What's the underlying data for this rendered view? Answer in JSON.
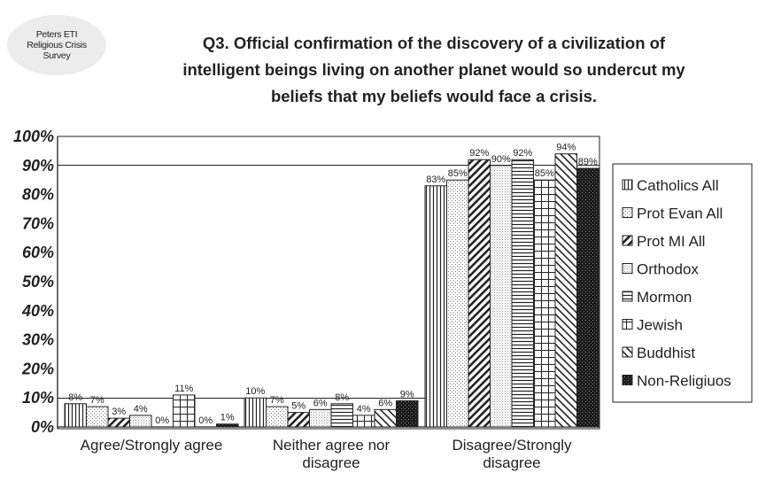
{
  "badge": {
    "lines": [
      "Peters ETI",
      "Religious Crisis",
      "Survey"
    ]
  },
  "title_lines": [
    "Q3. Official confirmation of the discovery of a civilization of",
    "intelligent beings living on another planet would so undercut my",
    "beliefs that my beliefs would face a crisis."
  ],
  "chart_data": {
    "type": "bar",
    "title": "Q3. Official confirmation of the discovery of a civilization of intelligent beings living on another planet would so undercut my beliefs that my beliefs would face a crisis.",
    "categories": [
      [
        "Agree/Strongly agree"
      ],
      [
        "Neither agree nor",
        "disagree"
      ],
      [
        "Disagree/Strongly",
        "disagree"
      ]
    ],
    "ylim": [
      0,
      100
    ],
    "yticks": [
      "0%",
      "10%",
      "20%",
      "30%",
      "40%",
      "50%",
      "60%",
      "70%",
      "80%",
      "90%",
      "100%"
    ],
    "grid": "horizontal lines at 10% and 90%",
    "legend_position": "right",
    "series": [
      {
        "name": "Catholics All",
        "pattern": "vlines",
        "values": [
          8,
          10,
          83
        ],
        "labels": [
          "8%",
          "10%",
          "83%"
        ]
      },
      {
        "name": "Prot Evan All",
        "pattern": "dots",
        "values": [
          7,
          7,
          85
        ],
        "labels": [
          "7%",
          "7%",
          "85%"
        ]
      },
      {
        "name": "Prot MI All",
        "pattern": "diag",
        "values": [
          3,
          5,
          92
        ],
        "labels": [
          "3%",
          "5%",
          "92%"
        ]
      },
      {
        "name": "Orthodox",
        "pattern": "fine",
        "values": [
          4,
          6,
          90
        ],
        "labels": [
          "4%",
          "6%",
          "90%"
        ]
      },
      {
        "name": "Mormon",
        "pattern": "hlines",
        "values": [
          0,
          8,
          92
        ],
        "labels": [
          "0%",
          "8%",
          "92%"
        ]
      },
      {
        "name": "Jewish",
        "pattern": "grid",
        "values": [
          11,
          4,
          85
        ],
        "labels": [
          "11%",
          "4%",
          "85%"
        ]
      },
      {
        "name": "Buddhist",
        "pattern": "diagwide",
        "values": [
          0,
          6,
          94
        ],
        "labels": [
          "0%",
          "6%",
          "94%"
        ]
      },
      {
        "name": "Non-Religiuos",
        "pattern": "dark",
        "values": [
          1,
          9,
          89
        ],
        "labels": [
          "1%",
          "9%",
          "89%"
        ]
      }
    ]
  }
}
